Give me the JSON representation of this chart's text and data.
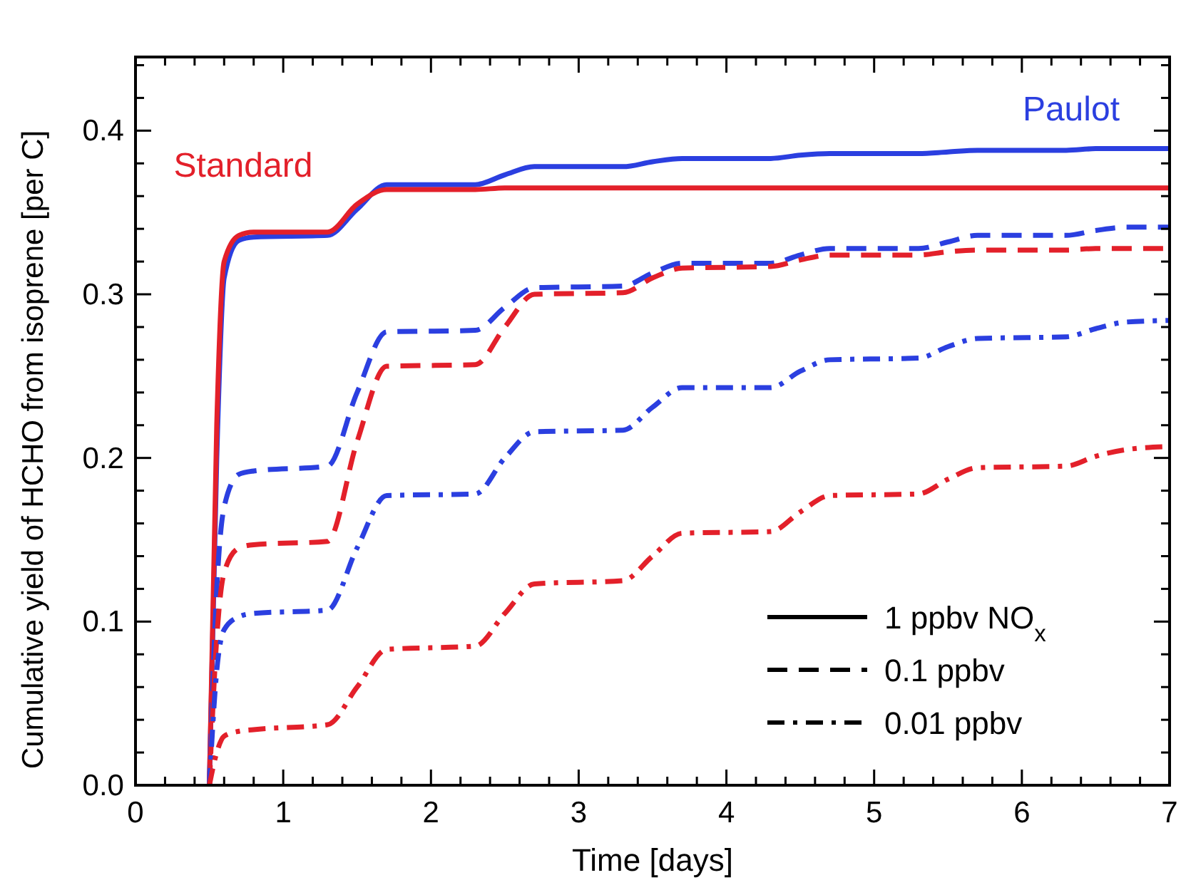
{
  "chart_data": {
    "type": "line",
    "xlabel": "Time [days]",
    "ylabel": "Cumulative yield of HCHO from isoprene [per C]",
    "x": [
      0.5,
      0.55,
      0.6,
      0.7,
      0.8,
      1.3,
      1.5,
      1.7,
      2.3,
      2.5,
      2.7,
      3.3,
      3.5,
      3.7,
      4.3,
      4.5,
      4.7,
      5.3,
      5.5,
      5.7,
      6.3,
      6.5,
      6.7,
      7
    ],
    "series": [
      {
        "name": "Paulot",
        "color": "#2b3fe0",
        "line_style": "solid",
        "values": [
          0,
          0.2,
          0.31,
          0.333,
          0.335,
          0.336,
          0.352,
          0.367,
          0.367,
          0.373,
          0.378,
          0.378,
          0.381,
          0.383,
          0.383,
          0.385,
          0.386,
          0.386,
          0.387,
          0.388,
          0.388,
          0.389,
          0.389,
          0.389
        ]
      },
      {
        "name": "Standard",
        "color": "#e3202a",
        "line_style": "solid",
        "values": [
          0,
          0.22,
          0.32,
          0.336,
          0.338,
          0.338,
          0.355,
          0.364,
          0.364,
          0.365,
          0.365,
          0.365,
          0.365,
          0.365,
          0.365,
          0.365,
          0.365,
          0.365,
          0.365,
          0.365,
          0.365,
          0.365,
          0.365,
          0.365
        ]
      },
      {
        "color": "#2b3fe0",
        "line_style": "dashed",
        "values": [
          0,
          0.12,
          0.17,
          0.19,
          0.192,
          0.195,
          0.24,
          0.277,
          0.278,
          0.292,
          0.304,
          0.305,
          0.313,
          0.319,
          0.319,
          0.324,
          0.328,
          0.328,
          0.332,
          0.336,
          0.336,
          0.339,
          0.341,
          0.341
        ]
      },
      {
        "color": "#e3202a",
        "line_style": "dashed",
        "values": [
          0,
          0.09,
          0.13,
          0.145,
          0.147,
          0.149,
          0.21,
          0.256,
          0.257,
          0.28,
          0.3,
          0.301,
          0.31,
          0.316,
          0.317,
          0.321,
          0.324,
          0.324,
          0.326,
          0.327,
          0.327,
          0.328,
          0.328,
          0.328
        ]
      },
      {
        "color": "#2b3fe0",
        "line_style": "dashdot",
        "values": [
          0,
          0.07,
          0.095,
          0.103,
          0.105,
          0.107,
          0.145,
          0.177,
          0.178,
          0.2,
          0.216,
          0.217,
          0.231,
          0.243,
          0.243,
          0.253,
          0.26,
          0.261,
          0.268,
          0.273,
          0.274,
          0.279,
          0.283,
          0.284
        ]
      },
      {
        "color": "#e3202a",
        "line_style": "dashdot",
        "values": [
          0,
          0.02,
          0.03,
          0.033,
          0.034,
          0.037,
          0.06,
          0.083,
          0.085,
          0.105,
          0.123,
          0.125,
          0.14,
          0.154,
          0.155,
          0.167,
          0.177,
          0.178,
          0.187,
          0.194,
          0.195,
          0.201,
          0.205,
          0.207
        ]
      }
    ],
    "annotations": [
      "1 ppbv NO$_{x}$",
      "0.1 ppbv",
      "0.01 ppbv"
    ],
    "xlim": [
      0,
      7
    ],
    "xticks": [
      0,
      {
        "value": 0.2,
        "label": null
      },
      {
        "value": 0.4,
        "label": null
      },
      {
        "value": 0.6,
        "label": null
      },
      {
        "value": 0.8,
        "label": null
      },
      1,
      {
        "value": 1.2,
        "label": null
      },
      {
        "value": 1.4,
        "label": null
      },
      {
        "value": 1.6,
        "label": null
      },
      {
        "value": 1.8,
        "label": null
      },
      2,
      {
        "value": 2.2,
        "label": null
      },
      {
        "value": 2.4,
        "label": null
      },
      {
        "value": 2.6,
        "label": null
      },
      {
        "value": 2.8,
        "label": null
      },
      3,
      {
        "value": 3.2,
        "label": null
      },
      {
        "value": 3.4,
        "label": null
      },
      {
        "value": 3.6,
        "label": null
      },
      {
        "value": 3.8,
        "label": null
      },
      4,
      {
        "value": 4.2,
        "label": null
      },
      {
        "value": 4.4,
        "label": null
      },
      {
        "value": 4.6,
        "label": null
      },
      {
        "value": 4.8,
        "label": null
      },
      5,
      {
        "value": 5.2,
        "label": null
      },
      {
        "value": 5.4,
        "label": null
      },
      {
        "value": 5.6,
        "label": null
      },
      {
        "value": 5.8,
        "label": null
      },
      6,
      {
        "value": 6.2,
        "label": null
      },
      {
        "value": 6.4,
        "label": null
      },
      {
        "value": 6.6,
        "label": null
      },
      {
        "value": 6.8,
        "label": null
      },
      7
    ],
    "ylim": [
      0,
      0.445
    ],
    "yticks": [
      {
        "value": 0,
        "label": "0.0"
      },
      {
        "value": 0.02,
        "label": null
      },
      {
        "value": 0.04,
        "label": null
      },
      {
        "value": 0.06,
        "label": null
      },
      {
        "value": 0.08,
        "label": null
      },
      0.1,
      {
        "value": 0.12,
        "label": null
      },
      {
        "value": 0.14,
        "label": null
      },
      {
        "value": 0.16,
        "label": null
      },
      {
        "value": 0.18,
        "label": null
      },
      0.2,
      {
        "value": 0.22,
        "label": null
      },
      {
        "value": 0.24,
        "label": null
      },
      {
        "value": 0.26,
        "label": null
      },
      {
        "value": 0.28,
        "label": null
      },
      0.3,
      {
        "value": 0.32,
        "label": null
      },
      {
        "value": 0.34,
        "label": null
      },
      {
        "value": 0.36,
        "label": null
      },
      {
        "value": 0.38,
        "label": null
      },
      0.4,
      {
        "value": 0.42,
        "label": null
      },
      {
        "value": 0.44,
        "label": null
      }
    ],
    "grid": false
  }
}
